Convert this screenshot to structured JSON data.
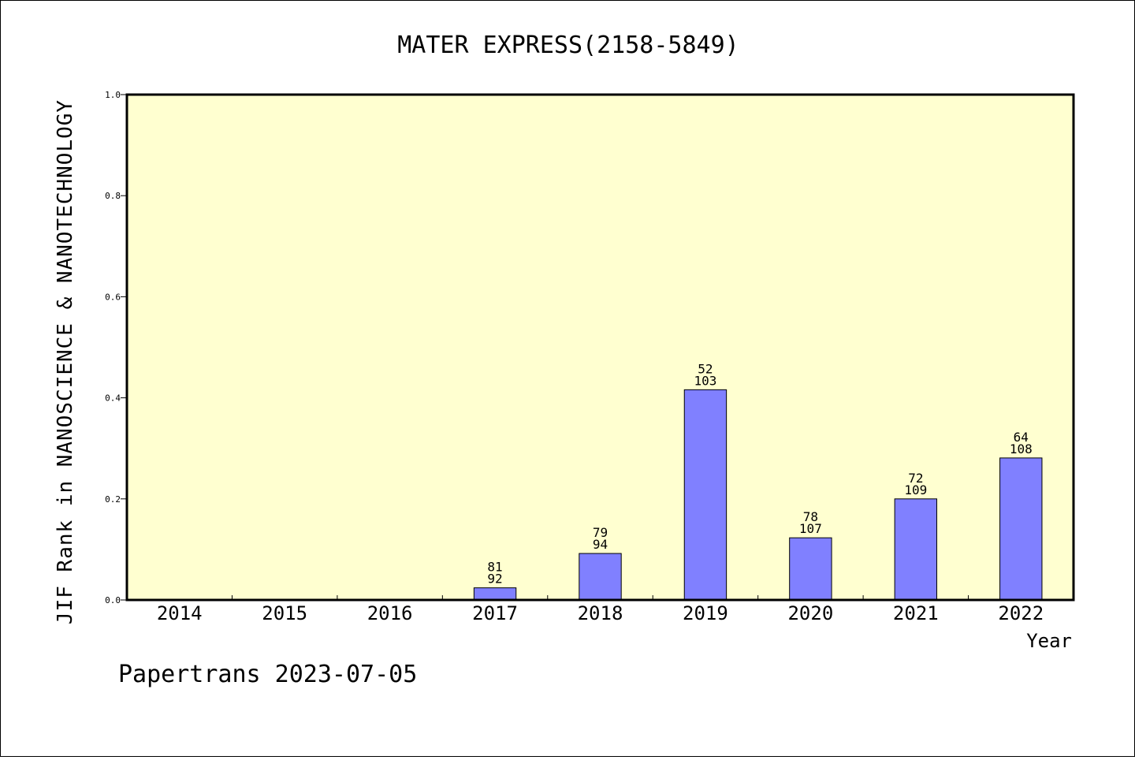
{
  "chart_data": {
    "type": "bar",
    "title": "MATER EXPRESS(2158-5849)",
    "xlabel": "Year",
    "ylabel": "JIF Rank in NANOSCIENCE & NANOTECHNOLOGY",
    "ylim": [
      0,
      1.0
    ],
    "yticks": [
      "0.0",
      "0.2",
      "0.4",
      "0.6",
      "0.8",
      "1.0"
    ],
    "categories": [
      "2014",
      "2015",
      "2016",
      "2017",
      "2018",
      "2019",
      "2020",
      "2021",
      "2022"
    ],
    "values": [
      null,
      null,
      null,
      0.024,
      0.092,
      0.416,
      0.123,
      0.2,
      0.281
    ],
    "ranks": [
      null,
      null,
      null,
      "81",
      "79",
      "52",
      "78",
      "72",
      "64"
    ],
    "totals": [
      null,
      null,
      null,
      "92",
      "94",
      "103",
      "107",
      "109",
      "108"
    ],
    "grid": false,
    "colors": {
      "plot_bg": "#ffffd0",
      "bar": "#8080ff",
      "bar_edge": "#000000"
    }
  },
  "footer": "Papertrans 2023-07-05"
}
